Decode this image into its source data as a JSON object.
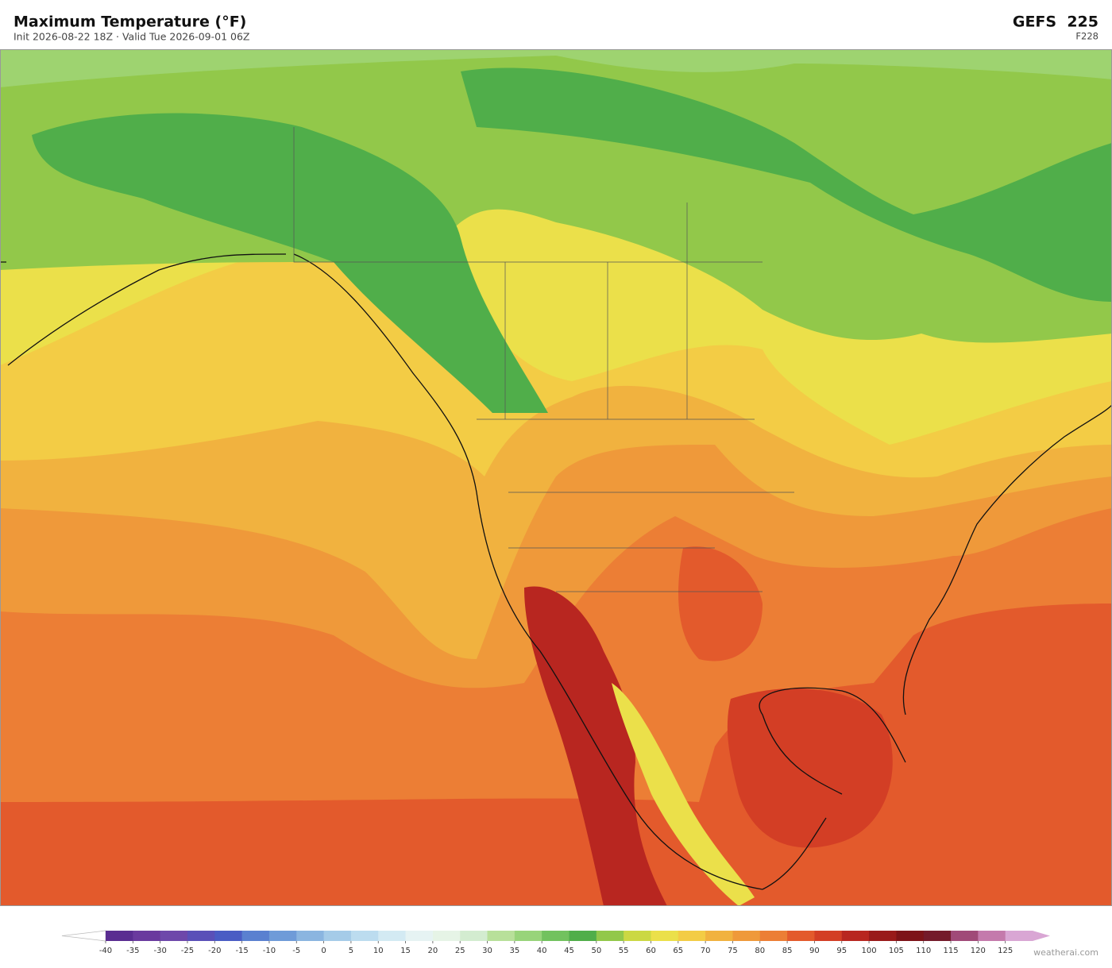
{
  "header": {
    "title": "Maximum Temperature  (°F)",
    "subtitle": "Init 2026-08-22 18Z  ·  Valid Tue 2026-09-01 06Z",
    "model": "GEFS  225",
    "forecast_hour": "F228"
  },
  "colorbar": {
    "ticks": [
      -40,
      -35,
      -30,
      -25,
      -20,
      -15,
      -10,
      -5,
      0,
      5,
      10,
      15,
      20,
      25,
      30,
      35,
      40,
      45,
      50,
      55,
      60,
      65,
      70,
      75,
      80,
      85,
      90,
      95,
      100,
      105,
      110,
      115,
      120,
      125
    ],
    "colors": [
      "#5a2d91",
      "#6a3a9e",
      "#6e48aa",
      "#5a50b8",
      "#4a5cc4",
      "#5a80d0",
      "#6f9bd8",
      "#8bb5e0",
      "#a5cbe8",
      "#bcdcef",
      "#d3eaf3",
      "#e6f3f3",
      "#e6f4e6",
      "#d3ecd0",
      "#b8e09a",
      "#98d47a",
      "#72c25e",
      "#50ae4a",
      "#92c84a",
      "#cbd843",
      "#ebe04a",
      "#f3cc45",
      "#f1b23f",
      "#ef993a",
      "#ec7e35",
      "#e35a2c",
      "#d33e25",
      "#b82620",
      "#991a1a",
      "#7d1318",
      "#741a2a",
      "#a04a78",
      "#c47aac",
      "#d9a6d4"
    ],
    "under_color": "#ffffff",
    "over_color": "#d9a6d4"
  },
  "footer": {
    "credit": "weatherai.com"
  }
}
